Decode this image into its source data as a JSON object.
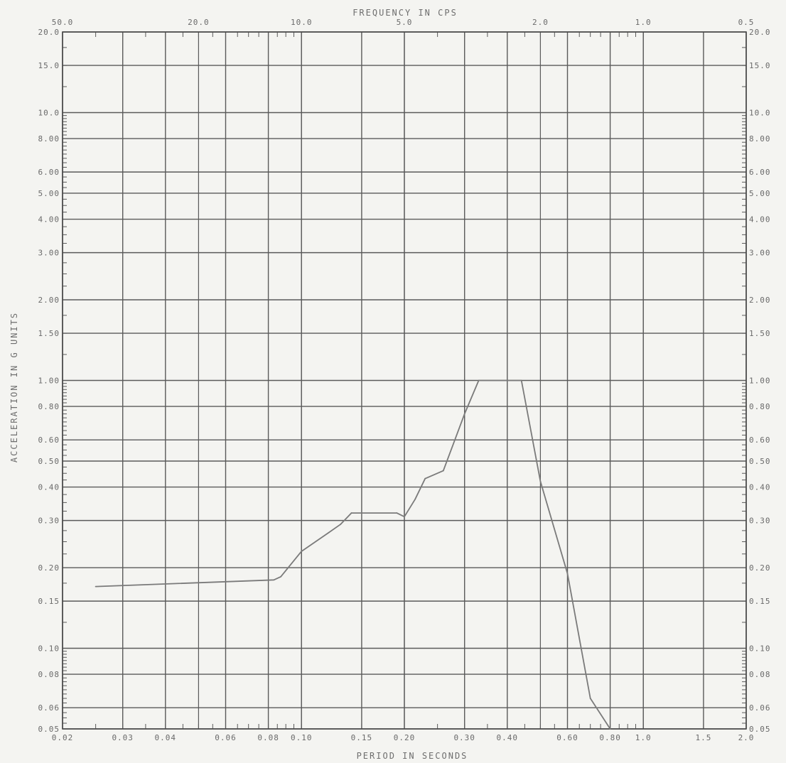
{
  "chart_data": {
    "type": "line",
    "title": "",
    "xlabel": "PERIOD IN SECONDS",
    "x2label": "FREQUENCY IN CPS",
    "ylabel": "ACCELERATION IN G UNITS",
    "x_scale": "log",
    "y_scale": "log",
    "xlim": [
      0.02,
      2.0
    ],
    "ylim": [
      0.05,
      20.0
    ],
    "grid": true,
    "x_ticks": [
      {
        "value": 0.02,
        "label": "0.02"
      },
      {
        "value": 0.03,
        "label": "0.03"
      },
      {
        "value": 0.04,
        "label": "0.04"
      },
      {
        "value": 0.06,
        "label": "0.06"
      },
      {
        "value": 0.08,
        "label": "0.08"
      },
      {
        "value": 0.1,
        "label": "0.10"
      },
      {
        "value": 0.15,
        "label": "0.15"
      },
      {
        "value": 0.2,
        "label": "0.20"
      },
      {
        "value": 0.3,
        "label": "0.30"
      },
      {
        "value": 0.4,
        "label": "0.40"
      },
      {
        "value": 0.6,
        "label": "0.60"
      },
      {
        "value": 0.8,
        "label": "0.80"
      },
      {
        "value": 1.0,
        "label": "1.0"
      },
      {
        "value": 1.5,
        "label": "1.5"
      },
      {
        "value": 2.0,
        "label": "2.0"
      }
    ],
    "freq_ticks": [
      {
        "period": 0.02,
        "label": "50.0"
      },
      {
        "period": 0.05,
        "label": "20.0"
      },
      {
        "period": 0.1,
        "label": "10.0"
      },
      {
        "period": 0.2,
        "label": "5.0"
      },
      {
        "period": 0.5,
        "label": "2.0"
      },
      {
        "period": 1.0,
        "label": "1.0"
      },
      {
        "period": 2.0,
        "label": "0.5"
      }
    ],
    "y_ticks": [
      {
        "value": 20.0,
        "left": "20.0",
        "right": "20.0"
      },
      {
        "value": 15.0,
        "left": "15.0",
        "right": "15.0"
      },
      {
        "value": 10.0,
        "left": "10.0",
        "right": "10.0"
      },
      {
        "value": 8.0,
        "left": "8.00",
        "right": "8.00"
      },
      {
        "value": 6.0,
        "left": "6.00",
        "right": "6.00"
      },
      {
        "value": 5.0,
        "left": "5.00",
        "right": "5.00"
      },
      {
        "value": 4.0,
        "left": "4.00",
        "right": "4.00"
      },
      {
        "value": 3.0,
        "left": "3.00",
        "right": "3.00"
      },
      {
        "value": 2.0,
        "left": "2.00",
        "right": "2.00"
      },
      {
        "value": 1.5,
        "left": "1.50",
        "right": "1.50"
      },
      {
        "value": 1.0,
        "left": "1.00",
        "right": "1.00"
      },
      {
        "value": 0.8,
        "left": "0.80",
        "right": "0.80"
      },
      {
        "value": 0.6,
        "left": "0.60",
        "right": "0.60"
      },
      {
        "value": 0.5,
        "left": "0.50",
        "right": "0.50"
      },
      {
        "value": 0.4,
        "left": "0.40",
        "right": "0.40"
      },
      {
        "value": 0.3,
        "left": "0.30",
        "right": "0.30"
      },
      {
        "value": 0.2,
        "left": "0.20",
        "right": "0.20"
      },
      {
        "value": 0.15,
        "left": "0.15",
        "right": "0.15"
      },
      {
        "value": 0.1,
        "left": "0.10",
        "right": "0.10"
      },
      {
        "value": 0.08,
        "left": "0.08",
        "right": "0.08"
      },
      {
        "value": 0.06,
        "left": "0.06",
        "right": "0.06"
      },
      {
        "value": 0.05,
        "left": "0.05",
        "right": "0.05"
      }
    ],
    "series": [
      {
        "color": "#7a7a7a",
        "x": [
          0.025,
          0.083,
          0.087,
          0.1,
          0.12,
          0.13,
          0.14,
          0.19,
          0.2,
          0.215,
          0.23,
          0.26,
          0.3,
          0.33,
          0.44,
          0.5,
          0.6,
          0.7,
          0.8
        ],
        "y": [
          0.17,
          0.18,
          0.185,
          0.23,
          0.27,
          0.29,
          0.32,
          0.32,
          0.31,
          0.36,
          0.43,
          0.46,
          0.75,
          1.0,
          1.0,
          0.42,
          0.19,
          0.065,
          0.05
        ]
      }
    ]
  }
}
